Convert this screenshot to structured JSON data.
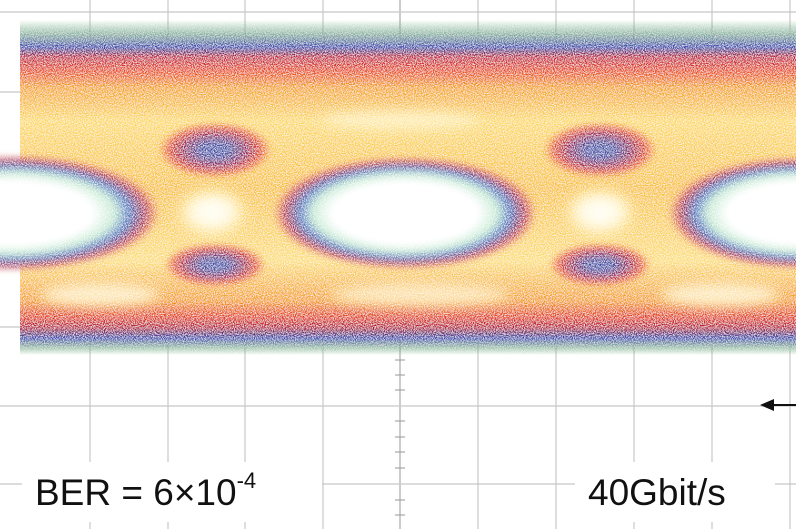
{
  "annotations": {
    "ber": {
      "base": "BER = 6×10",
      "exponent": "-4"
    },
    "bit_rate": "40Gbit/s"
  }
}
